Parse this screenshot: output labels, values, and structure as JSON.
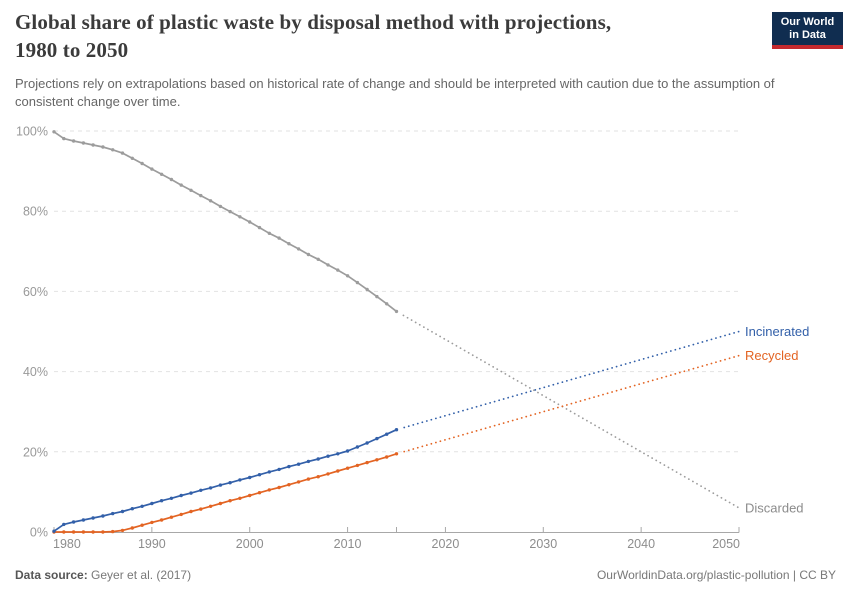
{
  "header": {
    "title_line1": "Global share of plastic waste by disposal method with projections,",
    "title_line2": "1980 to 2050",
    "subtitle": "Projections rely on extrapolations based on historical rate of change and should be interpreted with caution due to the assumption of consistent change over time."
  },
  "logo": {
    "line1": "Our World",
    "line2": "in Data",
    "bg_color": "#102d50",
    "bar_color": "#c4292e"
  },
  "footer": {
    "source_label": "Data source:",
    "source_value": "Geyer et al. (2017)",
    "link": "OurWorldinData.org/plastic-pollution",
    "divider": " | ",
    "license": "CC BY"
  },
  "chart_data": {
    "type": "line",
    "title": "Global share of plastic waste by disposal method with projections, 1980 to 2050",
    "xlim": [
      1980,
      2050
    ],
    "ylim": [
      0,
      100
    ],
    "grid": "dashed-horizontal",
    "legend_position": "line-end-labels",
    "projection_start_year": 2015,
    "projection_style": "dotted",
    "y_ticks": [
      {
        "value": 0,
        "label": "0%"
      },
      {
        "value": 20,
        "label": "20%"
      },
      {
        "value": 40,
        "label": "40%"
      },
      {
        "value": 60,
        "label": "60%"
      },
      {
        "value": 80,
        "label": "80%"
      },
      {
        "value": 100,
        "label": "100%"
      }
    ],
    "x_ticks": [
      {
        "year": 1980,
        "label": "1980"
      },
      {
        "year": 1990,
        "label": "1990"
      },
      {
        "year": 2000,
        "label": "2000"
      },
      {
        "year": 2010,
        "label": "2010"
      },
      {
        "year": 2020,
        "label": "2020"
      },
      {
        "year": 2030,
        "label": "2030"
      },
      {
        "year": 2040,
        "label": "2040"
      },
      {
        "year": 2050,
        "label": "2050"
      }
    ],
    "unlabeled_ticks": [
      2015
    ],
    "years_historical": [
      1980,
      1981,
      1982,
      1983,
      1984,
      1985,
      1986,
      1987,
      1988,
      1989,
      1990,
      1991,
      1992,
      1993,
      1994,
      1995,
      1996,
      1997,
      1998,
      1999,
      2000,
      2001,
      2002,
      2003,
      2004,
      2005,
      2006,
      2007,
      2008,
      2009,
      2010,
      2011,
      2012,
      2013,
      2014,
      2015
    ],
    "series": [
      {
        "name": "Incinerated",
        "color": "#3360a9",
        "label_color": "#3360a9",
        "historical": [
          0.2,
          1.9,
          2.5,
          3.0,
          3.5,
          4.0,
          4.6,
          5.1,
          5.8,
          6.4,
          7.1,
          7.8,
          8.4,
          9.1,
          9.7,
          10.4,
          11.0,
          11.7,
          12.3,
          13.0,
          13.6,
          14.3,
          15.0,
          15.6,
          16.3,
          16.9,
          17.6,
          18.2,
          18.9,
          19.5,
          20.2,
          21.2,
          22.2,
          23.3,
          24.4,
          25.5
        ],
        "projection": {
          "years": [
            2015,
            2050
          ],
          "values": [
            25.5,
            50.0
          ]
        }
      },
      {
        "name": "Recycled",
        "color": "#e36423",
        "label_color": "#e36423",
        "historical": [
          0.0,
          0.0,
          0.0,
          0.0,
          0.0,
          0.0,
          0.1,
          0.4,
          1.0,
          1.7,
          2.4,
          3.0,
          3.7,
          4.4,
          5.1,
          5.7,
          6.4,
          7.1,
          7.8,
          8.4,
          9.1,
          9.8,
          10.5,
          11.1,
          11.8,
          12.5,
          13.2,
          13.8,
          14.5,
          15.2,
          15.9,
          16.6,
          17.3,
          18.0,
          18.7,
          19.5
        ],
        "projection": {
          "years": [
            2015,
            2050
          ],
          "values": [
            19.5,
            44.0
          ]
        }
      },
      {
        "name": "Discarded",
        "color": "#9c9c9c",
        "label_color": "#8b8b8b",
        "historical": [
          99.8,
          98.1,
          97.5,
          97.0,
          96.5,
          96.0,
          95.3,
          94.5,
          93.2,
          91.9,
          90.5,
          89.2,
          87.9,
          86.5,
          85.2,
          83.9,
          82.6,
          81.2,
          79.9,
          78.6,
          77.3,
          75.9,
          74.5,
          73.3,
          71.9,
          70.6,
          69.2,
          68.0,
          66.6,
          65.3,
          63.9,
          62.2,
          60.5,
          58.7,
          56.9,
          55.0
        ],
        "projection": {
          "years": [
            2015,
            2050
          ],
          "values": [
            55.0,
            6.0
          ]
        }
      }
    ],
    "style": {
      "gridline_color": "#e2e2e2",
      "axis_line_color": "#a8a8a8",
      "y_label_color": "#999999",
      "x_label_color": "#8d8d8d"
    }
  }
}
